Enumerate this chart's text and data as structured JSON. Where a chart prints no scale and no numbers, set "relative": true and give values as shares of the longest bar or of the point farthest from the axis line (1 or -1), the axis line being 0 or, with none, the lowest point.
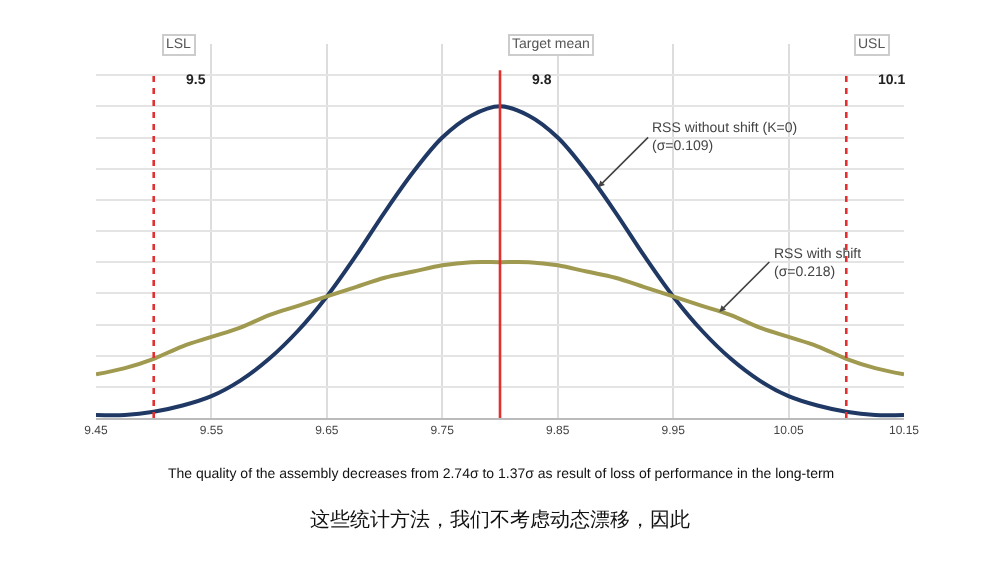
{
  "chart_data": {
    "type": "line",
    "relative": true,
    "x": [
      9.45,
      9.475,
      9.5,
      9.525,
      9.55,
      9.575,
      9.6,
      9.625,
      9.65,
      9.675,
      9.7,
      9.725,
      9.75,
      9.775,
      9.8,
      9.825,
      9.85,
      9.875,
      9.9,
      9.925,
      9.95,
      9.975,
      10.0,
      10.025,
      10.05,
      10.075,
      10.1,
      10.125,
      10.15
    ],
    "series": [
      {
        "color": "#1f3864",
        "values": [
          0.01,
          0.01,
          0.02,
          0.04,
          0.07,
          0.12,
          0.19,
          0.28,
          0.39,
          0.52,
          0.66,
          0.79,
          0.9,
          0.97,
          1,
          0.97,
          0.9,
          0.79,
          0.66,
          0.52,
          0.39,
          0.28,
          0.19,
          0.12,
          0.07,
          0.04,
          0.02,
          0.01,
          0.01
        ]
      },
      {
        "color": "#a09a50",
        "values": [
          0.14,
          0.16,
          0.19,
          0.23,
          0.26,
          0.29,
          0.33,
          0.36,
          0.39,
          0.42,
          0.45,
          0.47,
          0.49,
          0.5,
          0.5,
          0.5,
          0.49,
          0.47,
          0.45,
          0.42,
          0.39,
          0.36,
          0.33,
          0.29,
          0.26,
          0.23,
          0.19,
          0.16,
          0.14
        ]
      }
    ],
    "xlim": [
      9.45,
      10.15
    ],
    "xticks": [
      9.45,
      9.55,
      9.65,
      9.75,
      9.85,
      9.95,
      10.05,
      10.15
    ],
    "ref_lines": [
      {
        "axis": "x",
        "value": 9.5,
        "label": "LSL",
        "color": "#e03030",
        "line_style": "dotted"
      },
      {
        "axis": "x",
        "value": 9.8,
        "label": "Target mean",
        "color": "#e03030",
        "line_style": "solid"
      },
      {
        "axis": "x",
        "value": 10.1,
        "label": "USL",
        "color": "#e03030",
        "line_style": "dotted"
      }
    ],
    "annotations": [
      {
        "text": "9.5",
        "x": 9.5
      },
      {
        "text": "9.8",
        "x": 9.8
      },
      {
        "text": "10.1",
        "x": 10.1
      },
      {
        "text": "RSS without shift (K=0)\n(σ=0.109)",
        "x": 9.885,
        "y": 0.74
      },
      {
        "text": "RSS with shift\n(σ=0.218)",
        "x": 9.99,
        "y": 0.34
      },
      "The quality of the assembly decreases from 2.74σ to 1.37σ as result of loss of performance in the long-term",
      "这些统计方法，我们不考虑动态漂移，因此"
    ],
    "grid": true,
    "marker": "none",
    "line_style": "solid"
  }
}
